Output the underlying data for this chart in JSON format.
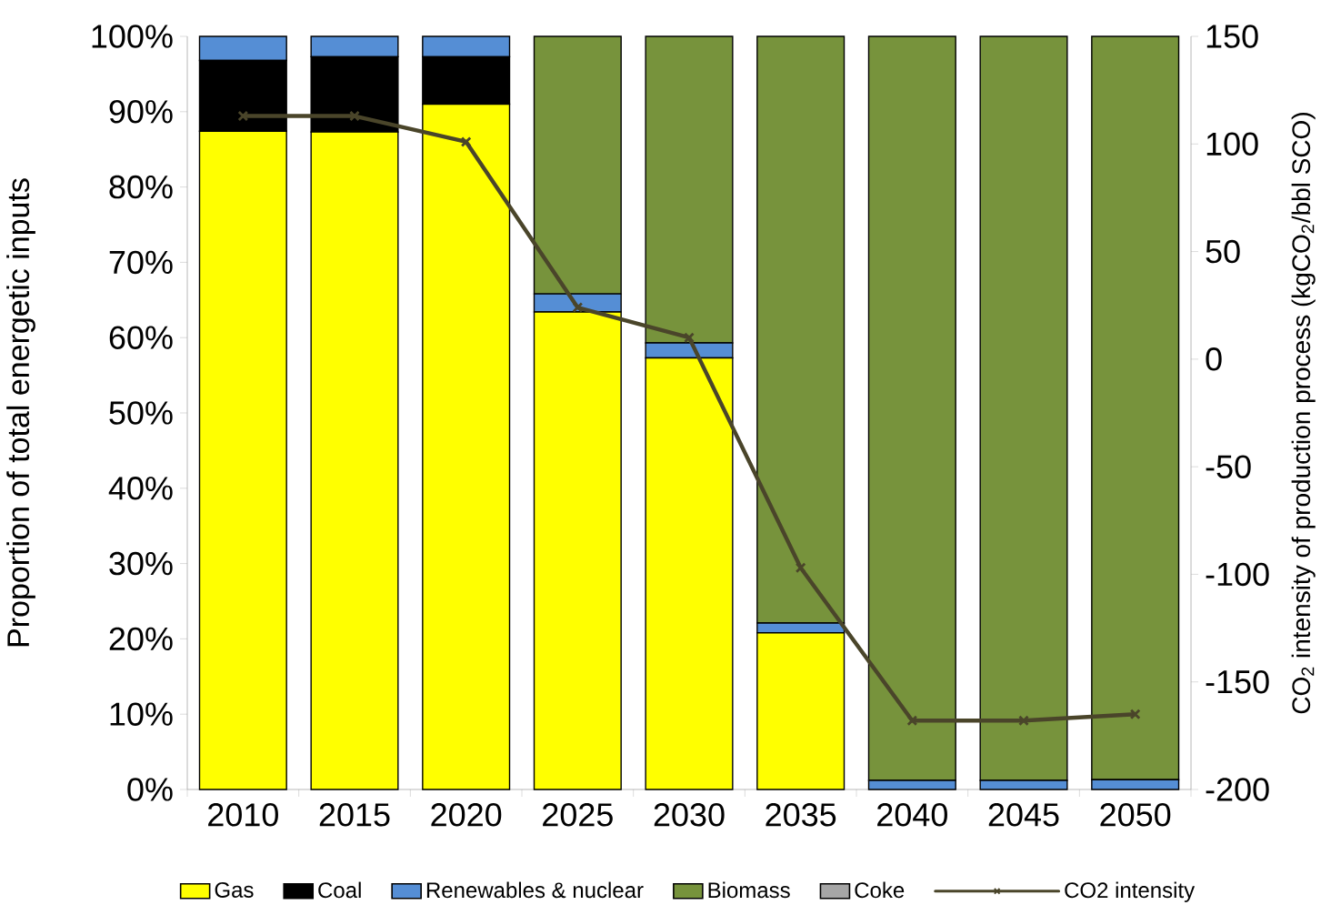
{
  "chart_data": {
    "type": "bar",
    "stacked": true,
    "ylabel": "Proportion of total energetic inputs",
    "y2label": "CO$_{2}$ intensity of production process (kgCO$_{2}$/bbl SCO)",
    "categories": [
      "2010",
      "2015",
      "2020",
      "2025",
      "2030",
      "2035",
      "2040",
      "2045",
      "2050"
    ],
    "series": [
      {
        "name": "Gas",
        "color": "#ffff00",
        "values": [
          87.4,
          87.3,
          91.0,
          63.4,
          57.3,
          20.8,
          0,
          0,
          0
        ]
      },
      {
        "name": "Coal",
        "color": "#000000",
        "values": [
          9.4,
          10.0,
          6.3,
          0,
          0,
          0,
          0,
          0,
          0
        ]
      },
      {
        "name": "Renewables & nuclear",
        "color": "#558ed5",
        "values": [
          3.2,
          2.7,
          2.7,
          2.4,
          2.0,
          1.3,
          1.2,
          1.2,
          1.3
        ]
      },
      {
        "name": "Biomass",
        "color": "#77933c",
        "values": [
          0,
          0,
          0,
          34.2,
          40.7,
          77.9,
          98.8,
          98.8,
          98.7
        ]
      },
      {
        "name": "Coke",
        "color": "#a6a6a6",
        "values": [
          0,
          0,
          0,
          0,
          0,
          0,
          0,
          0,
          0
        ]
      },
      {
        "name": "CO2 intensity",
        "type": "line",
        "axis": "y2",
        "color": "#4a452a",
        "marker": "cross",
        "line_style": "solid",
        "values": [
          113,
          113,
          101,
          24,
          10,
          -97,
          -168,
          -168,
          -165
        ]
      }
    ],
    "ylim": [
      0,
      100
    ],
    "yticks": [
      {
        "value": 0,
        "label": "0%"
      },
      {
        "value": 10,
        "label": "10%"
      },
      {
        "value": 20,
        "label": "20%"
      },
      {
        "value": 30,
        "label": "30%"
      },
      {
        "value": 40,
        "label": "40%"
      },
      {
        "value": 50,
        "label": "50%"
      },
      {
        "value": 60,
        "label": "60%"
      },
      {
        "value": 70,
        "label": "70%"
      },
      {
        "value": 80,
        "label": "80%"
      },
      {
        "value": 90,
        "label": "90%"
      },
      {
        "value": 100,
        "label": "100%"
      }
    ],
    "y2lim": [
      -200,
      150
    ],
    "y2ticks": [
      -200,
      -150,
      -100,
      -50,
      0,
      50,
      100,
      150
    ],
    "legend": "bottom"
  }
}
